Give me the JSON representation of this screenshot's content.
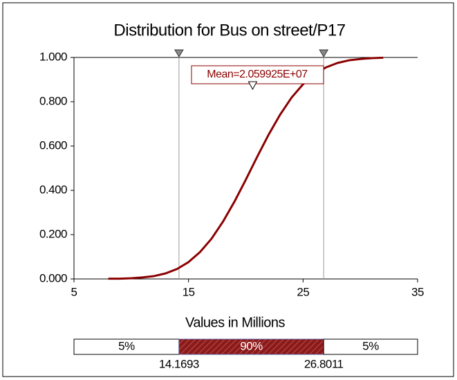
{
  "chart_data": {
    "type": "line",
    "title": "Distribution for Bus on street/P17",
    "x_label": "Values in Millions",
    "x": [
      8,
      9,
      10,
      11,
      12,
      13,
      14,
      15,
      16,
      17,
      18,
      19,
      20,
      21,
      22,
      23,
      24,
      25,
      26,
      27,
      28,
      29,
      30,
      31,
      32
    ],
    "series": [
      {
        "name": "Bus on street/P17",
        "color": "#8b0000",
        "values": [
          0.001,
          0.001,
          0.003,
          0.007,
          0.013,
          0.025,
          0.045,
          0.076,
          0.121,
          0.181,
          0.258,
          0.348,
          0.448,
          0.552,
          0.652,
          0.742,
          0.819,
          0.879,
          0.924,
          0.955,
          0.975,
          0.987,
          0.993,
          0.997,
          0.999
        ]
      }
    ],
    "xlim": [
      5,
      35
    ],
    "xticks": [
      5,
      15,
      25,
      35
    ],
    "ylim": [
      0,
      1
    ],
    "yticks": [
      {
        "value": 0,
        "label": "0.000"
      },
      {
        "value": 0.2,
        "label": "0.200"
      },
      {
        "value": 0.4,
        "label": "0.400"
      },
      {
        "value": 0.6,
        "label": "0.600"
      },
      {
        "value": 0.8,
        "label": "0.800"
      },
      {
        "value": 1,
        "label": "1.000"
      }
    ],
    "mean": 20.59925,
    "mean_label": "Mean=2.059925E+07",
    "delimiters": [
      14.1693,
      26.8011
    ],
    "percentages": [
      5,
      90,
      5
    ],
    "percentage_labels": [
      "5%",
      "90%",
      "5%"
    ]
  }
}
